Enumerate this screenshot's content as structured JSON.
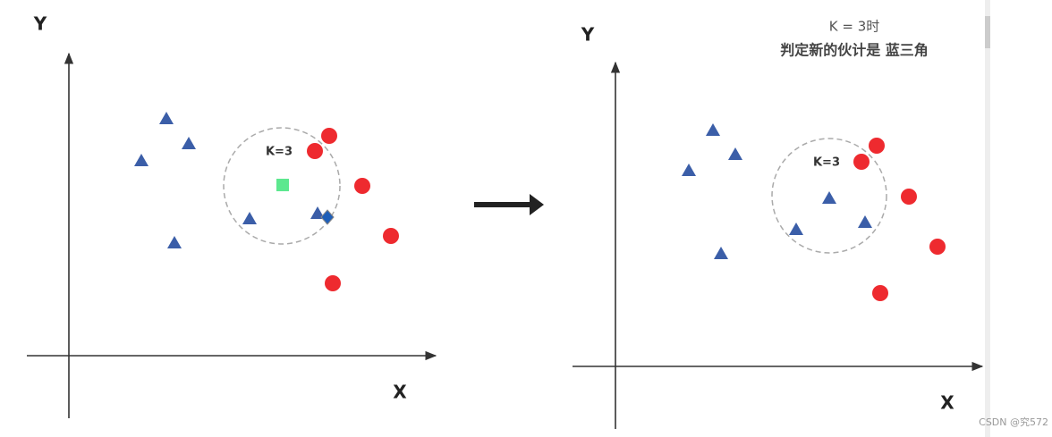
{
  "left": {
    "y_label": "Y",
    "x_label": "X",
    "circle_label": "K=3"
  },
  "right": {
    "y_label": "Y",
    "x_label": "X",
    "circle_label": "K=3",
    "annotation": [
      "K = 3时",
      "判定新的伙计是 蓝三角"
    ]
  },
  "watermark": "CSDN @究572"
}
